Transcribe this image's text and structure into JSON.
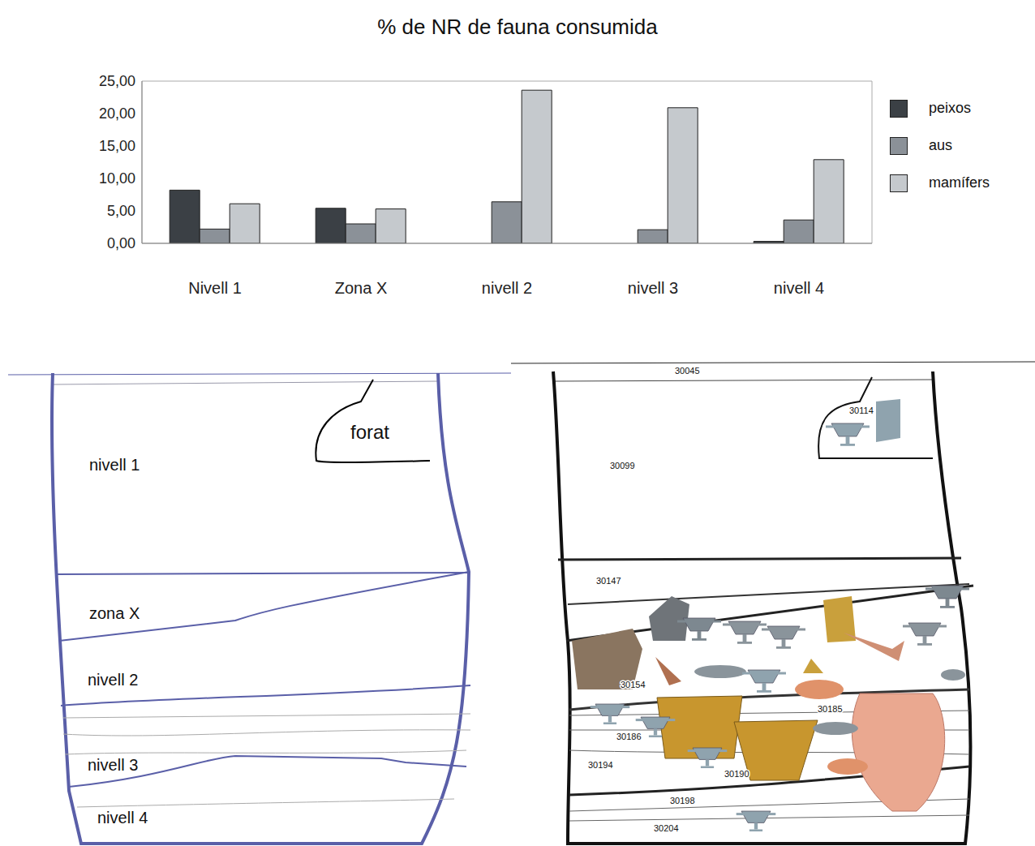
{
  "chart_data": {
    "type": "bar",
    "title": "% de NR de fauna consumida",
    "categories": [
      "Nivell 1",
      "Zona X",
      "nivell 2",
      "nivell 3",
      "nivell 4"
    ],
    "series": [
      {
        "name": "peixos",
        "color": "#3b4045",
        "values": [
          8.2,
          5.4,
          0,
          0,
          0.3
        ]
      },
      {
        "name": "aus",
        "color": "#8b9198",
        "values": [
          2.2,
          3.0,
          6.4,
          2.1,
          3.6
        ]
      },
      {
        "name": "mamífers",
        "color": "#c5c9cd",
        "values": [
          6.1,
          5.3,
          23.6,
          20.9,
          12.9
        ]
      }
    ],
    "ylim": [
      0,
      25
    ],
    "yticks": [
      {
        "value": 0,
        "label": "0,00"
      },
      {
        "value": 5,
        "label": "5,00"
      },
      {
        "value": 10,
        "label": "10,00"
      },
      {
        "value": 15,
        "label": "15,00"
      },
      {
        "value": 20,
        "label": "20,00"
      },
      {
        "value": 25,
        "label": "25,00"
      }
    ],
    "grid": false,
    "legend": "right"
  },
  "sections": {
    "left": {
      "labels": [
        "nivell 1",
        "forat",
        "zona X",
        "nivell 2",
        "nivell 3",
        "nivell 4"
      ]
    },
    "right": {
      "labels": [
        "30045",
        "30114",
        "30099",
        "30147",
        "30154",
        "30185",
        "30186",
        "30194",
        "30190",
        "30198",
        "30204"
      ]
    }
  }
}
